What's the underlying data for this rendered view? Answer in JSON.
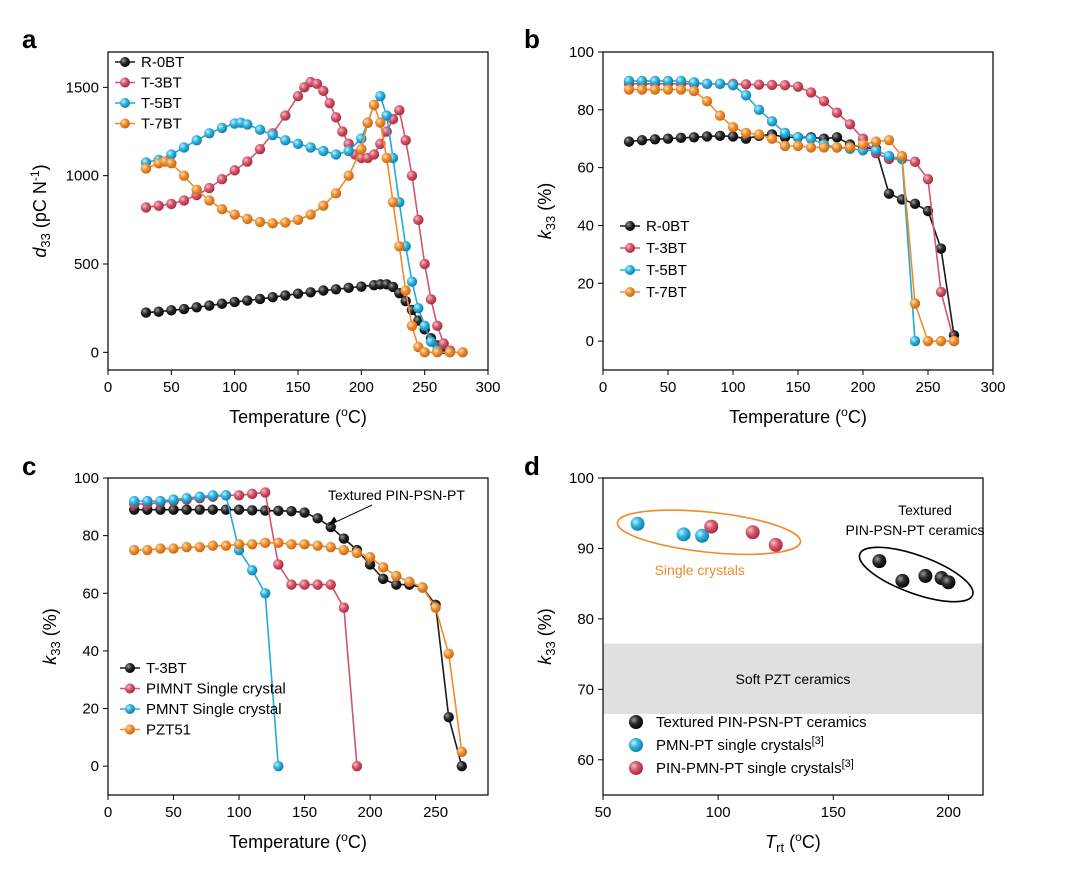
{
  "chart_data": [
    {
      "panel": "a",
      "type": "scatter",
      "xlabel": "Temperature (°C)",
      "ylabel": "d33 (pC N-1)",
      "ylabel_main": "d",
      "ylabel_sub": "33",
      "ylabel_rest": " (pC N",
      "ylabel_sup": "-1",
      "ylabel_end": ")",
      "xlabel_main": "Temperature (",
      "xlabel_sup": "o",
      "xlabel_end": "C)",
      "xlim": [
        0,
        300
      ],
      "ylim": [
        -100,
        1700
      ],
      "xticks": [
        0,
        50,
        100,
        150,
        200,
        250,
        300
      ],
      "yticks": [
        0,
        500,
        1000,
        1500
      ],
      "legend_position": "top-left",
      "series": [
        {
          "name": "R-0BT",
          "color": "#1a1a1a",
          "x": [
            30,
            40,
            50,
            60,
            70,
            80,
            90,
            100,
            110,
            120,
            130,
            140,
            150,
            160,
            170,
            180,
            190,
            200,
            210,
            215,
            220,
            225,
            230,
            235,
            240,
            245,
            250,
            255,
            260,
            265,
            270
          ],
          "y": [
            225,
            230,
            238,
            245,
            255,
            265,
            275,
            285,
            293,
            302,
            312,
            322,
            332,
            340,
            350,
            357,
            365,
            372,
            380,
            385,
            385,
            370,
            335,
            290,
            240,
            180,
            130,
            80,
            40,
            20,
            5
          ]
        },
        {
          "name": "T-3BT",
          "color": "#d0566b",
          "x": [
            30,
            40,
            50,
            60,
            70,
            80,
            90,
            100,
            110,
            120,
            130,
            140,
            150,
            155,
            160,
            165,
            170,
            175,
            180,
            185,
            190,
            195,
            200,
            205,
            210,
            215,
            220,
            225,
            230,
            235,
            240,
            245,
            250,
            255,
            260,
            265,
            270
          ],
          "y": [
            820,
            830,
            840,
            860,
            890,
            930,
            980,
            1030,
            1080,
            1150,
            1240,
            1340,
            1450,
            1500,
            1530,
            1520,
            1480,
            1410,
            1330,
            1250,
            1180,
            1120,
            1100,
            1100,
            1120,
            1180,
            1250,
            1320,
            1370,
            1200,
            1000,
            750,
            500,
            300,
            150,
            50,
            10
          ]
        },
        {
          "name": "T-5BT",
          "color": "#27a9d6",
          "x": [
            30,
            40,
            50,
            60,
            70,
            80,
            90,
            100,
            105,
            110,
            120,
            130,
            140,
            150,
            160,
            170,
            180,
            190,
            200,
            205,
            210,
            215,
            220,
            225,
            230,
            235,
            240,
            245,
            250,
            255,
            260
          ],
          "y": [
            1075,
            1090,
            1120,
            1160,
            1200,
            1240,
            1270,
            1295,
            1300,
            1290,
            1260,
            1230,
            1200,
            1180,
            1160,
            1140,
            1120,
            1140,
            1210,
            1300,
            1400,
            1450,
            1340,
            1100,
            850,
            600,
            400,
            250,
            150,
            60,
            10
          ]
        },
        {
          "name": "T-7BT",
          "color": "#ef8b2c",
          "x": [
            30,
            40,
            45,
            50,
            60,
            70,
            80,
            90,
            100,
            110,
            120,
            130,
            140,
            150,
            160,
            170,
            180,
            190,
            200,
            205,
            210,
            215,
            220,
            225,
            230,
            235,
            240,
            245,
            250,
            260,
            270,
            280
          ],
          "y": [
            1040,
            1070,
            1080,
            1070,
            1000,
            920,
            860,
            810,
            780,
            755,
            738,
            730,
            735,
            750,
            780,
            830,
            900,
            1000,
            1150,
            1300,
            1400,
            1300,
            1100,
            850,
            600,
            350,
            150,
            30,
            0,
            0,
            0,
            0
          ]
        }
      ]
    },
    {
      "panel": "b",
      "type": "line",
      "xlabel": "Temperature (°C)",
      "ylabel": "k33 (%)",
      "ylabel_main": "k",
      "ylabel_sub": "33",
      "ylabel_rest": " (%)",
      "xlabel_main": "Temperature (",
      "xlabel_sup": "o",
      "xlabel_end": "C)",
      "xlim": [
        0,
        300
      ],
      "ylim": [
        -10,
        100
      ],
      "xticks": [
        0,
        50,
        100,
        150,
        200,
        250,
        300
      ],
      "yticks": [
        0,
        20,
        40,
        60,
        80,
        100
      ],
      "legend_position": "bottom-left",
      "series": [
        {
          "name": "R-0BT",
          "color": "#1a1a1a",
          "x": [
            20,
            30,
            40,
            50,
            60,
            70,
            80,
            90,
            100,
            110,
            120,
            130,
            140,
            150,
            160,
            170,
            180,
            190,
            200,
            210,
            220,
            230,
            240,
            250,
            260,
            270
          ],
          "y": [
            69,
            69.5,
            69.8,
            70,
            70.3,
            70.5,
            70.8,
            71,
            70.8,
            70,
            71,
            71.5,
            70.5,
            70.5,
            70.5,
            70,
            70.5,
            68,
            67,
            66.5,
            51,
            49,
            47.5,
            45,
            32,
            2
          ]
        },
        {
          "name": "T-3BT",
          "color": "#d0566b",
          "x": [
            20,
            30,
            40,
            50,
            60,
            70,
            80,
            90,
            100,
            110,
            120,
            130,
            140,
            150,
            160,
            170,
            180,
            190,
            200,
            210,
            220,
            230,
            240,
            250,
            260,
            270
          ],
          "y": [
            89,
            89,
            89,
            89,
            89,
            89,
            89,
            89,
            89,
            88.8,
            88.7,
            88.6,
            88.5,
            88,
            86,
            83,
            79,
            75,
            70,
            65,
            63,
            63,
            62,
            56,
            17,
            0
          ]
        },
        {
          "name": "T-5BT",
          "color": "#27a9d6",
          "x": [
            20,
            30,
            40,
            50,
            60,
            70,
            80,
            90,
            100,
            110,
            120,
            130,
            140,
            150,
            160,
            170,
            180,
            190,
            200,
            210,
            220,
            230,
            240
          ],
          "y": [
            90,
            90,
            90,
            90,
            90,
            89.5,
            89,
            89,
            88.5,
            85,
            80,
            76,
            72,
            70.5,
            70,
            68,
            67,
            66.5,
            66,
            66,
            64,
            63,
            0
          ]
        },
        {
          "name": "T-7BT",
          "color": "#ef8b2c",
          "x": [
            20,
            30,
            40,
            50,
            60,
            70,
            80,
            90,
            100,
            110,
            120,
            130,
            140,
            150,
            160,
            170,
            180,
            190,
            200,
            210,
            220,
            230,
            240,
            250,
            260,
            270
          ],
          "y": [
            87,
            87,
            87,
            87,
            87,
            86.5,
            83,
            78,
            74,
            72,
            71.5,
            70,
            67.5,
            67.5,
            67,
            67,
            67,
            67,
            68,
            69,
            69.5,
            64,
            13,
            0,
            0,
            0
          ]
        }
      ]
    },
    {
      "panel": "c",
      "type": "line",
      "xlabel": "Temperature (°C)",
      "ylabel": "k33 (%)",
      "ylabel_main": "k",
      "ylabel_sub": "33",
      "ylabel_rest": " (%)",
      "xlabel_main": "Temperature (",
      "xlabel_sup": "o",
      "xlabel_end": "C)",
      "xlim": [
        0,
        290
      ],
      "ylim": [
        -10,
        100
      ],
      "xticks": [
        0,
        50,
        100,
        150,
        200,
        250
      ],
      "yticks": [
        0,
        20,
        40,
        60,
        80,
        100
      ],
      "legend_position": "bottom-left",
      "annotation": "Textured PIN-PSN-PT",
      "series": [
        {
          "name": "T-3BT",
          "color": "#1a1a1a",
          "x": [
            20,
            30,
            40,
            50,
            60,
            70,
            80,
            90,
            100,
            110,
            120,
            130,
            140,
            150,
            160,
            170,
            180,
            190,
            200,
            210,
            220,
            230,
            240,
            250,
            260,
            270
          ],
          "y": [
            89,
            89,
            89,
            89,
            89,
            89,
            89,
            89,
            89,
            88.8,
            88.7,
            88.6,
            88.5,
            88,
            86,
            83,
            79,
            75,
            70,
            65,
            63,
            63,
            62,
            56,
            17,
            0
          ]
        },
        {
          "name": "PIMNT Single crystal",
          "color": "#d0566b",
          "x": [
            20,
            30,
            40,
            50,
            60,
            70,
            80,
            90,
            100,
            110,
            120,
            130,
            140,
            150,
            160,
            170,
            180,
            190
          ],
          "y": [
            91,
            91,
            91.5,
            92,
            92.5,
            93,
            93.5,
            94,
            94,
            94.5,
            95,
            70,
            63,
            63,
            63,
            63,
            55,
            0
          ]
        },
        {
          "name": "PMNT Single crystal",
          "color": "#27a9d6",
          "x": [
            20,
            30,
            40,
            50,
            60,
            70,
            80,
            90,
            100,
            110,
            120,
            130
          ],
          "y": [
            92,
            92,
            92,
            92.5,
            93,
            93.5,
            94,
            94,
            75,
            68,
            60,
            0
          ]
        },
        {
          "name": "PZT51",
          "color": "#ef8b2c",
          "x": [
            20,
            30,
            40,
            50,
            60,
            70,
            80,
            90,
            100,
            110,
            120,
            130,
            140,
            150,
            160,
            170,
            180,
            190,
            200,
            210,
            220,
            230,
            240,
            250,
            260,
            270
          ],
          "y": [
            75,
            75,
            75.5,
            75.5,
            76,
            76,
            76.5,
            76.5,
            77,
            77,
            77.5,
            77.5,
            77,
            77,
            76.5,
            76,
            75,
            74,
            72.5,
            69,
            66,
            64,
            62,
            55,
            39,
            5
          ]
        }
      ]
    },
    {
      "panel": "d",
      "type": "scatter",
      "xlabel": "Trt (°C)",
      "ylabel": "k33 (%)",
      "ylabel_main": "k",
      "ylabel_sub": "33",
      "ylabel_rest": " (%)",
      "xlabel_main": "T",
      "xlabel_subscript": "rt",
      "xlabel_mid": " (",
      "xlabel_sup": "o",
      "xlabel_end": "C)",
      "xlim": [
        50,
        215
      ],
      "ylim": [
        55,
        100
      ],
      "xticks": [
        50,
        100,
        150,
        200
      ],
      "yticks": [
        60,
        70,
        80,
        90,
        100
      ],
      "band": {
        "label": "Soft PZT ceramics",
        "y": [
          66.5,
          76.5
        ],
        "color": "#e0e0e0"
      },
      "group_labels": {
        "single": "Single crystals",
        "textured_line1": "Textured",
        "textured_line2": "PIN-PSN-PT ceramics"
      },
      "legend_position": "bottom-left",
      "series": [
        {
          "name": "Textured PIN-PSN-PT ceramics",
          "sup": "",
          "color": "#1a1a1a",
          "x": [
            170,
            180,
            190,
            197,
            200
          ],
          "y": [
            88.2,
            85.4,
            86.1,
            85.8,
            85.2
          ]
        },
        {
          "name": "PMN-PT single crystals",
          "sup": "[3]",
          "color": "#27a9d6",
          "x": [
            65,
            85,
            93
          ],
          "y": [
            93.5,
            92,
            91.8
          ]
        },
        {
          "name": "PIN-PMN-PT single crystals",
          "sup": "[3]",
          "color": "#d0566b",
          "x": [
            97,
            115,
            125
          ],
          "y": [
            93.1,
            92.3,
            90.5
          ]
        }
      ]
    }
  ],
  "panel_labels": [
    "a",
    "b",
    "c",
    "d"
  ]
}
